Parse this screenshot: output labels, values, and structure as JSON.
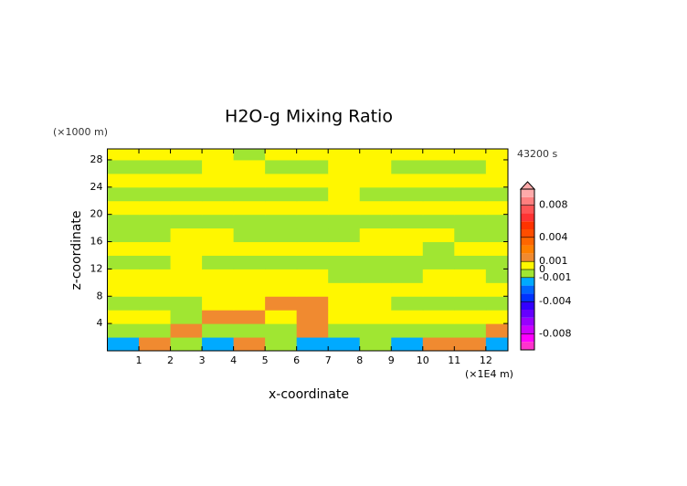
{
  "chart_data": {
    "type": "contour",
    "title": "H2O-g Mixing Ratio",
    "time_label": "43200 s",
    "x_label": "x-coordinate",
    "y_label": "z-coordinate",
    "x_unit": "(×1E4 m)",
    "y_unit": "(×1000 m)",
    "xlim": [
      0,
      12.7
    ],
    "ylim": [
      0,
      29.6
    ],
    "xticks": [
      1,
      2,
      3,
      4,
      5,
      6,
      7,
      8,
      9,
      10,
      11,
      12
    ],
    "yticks": [
      4,
      8,
      12,
      16,
      20,
      24,
      28
    ],
    "x": [
      0.5,
      1.5,
      2.5,
      3.5,
      4.5,
      5.5,
      6.5,
      7.5,
      8.5,
      9.5,
      10.5,
      11.5,
      12.5
    ],
    "y": [
      1,
      3,
      5,
      7,
      9,
      11,
      13,
      15,
      17,
      19,
      21,
      23,
      25,
      27,
      29
    ],
    "z": [
      [
        -0.0015,
        0.0015,
        -0.0005,
        -0.0015,
        0.0015,
        -0.0005,
        -0.0015,
        -0.0015,
        -0.0005,
        -0.0015,
        0.0015,
        0.0015,
        -0.0015
      ],
      [
        -0.0005,
        -0.0005,
        0.0015,
        -0.0005,
        -0.0005,
        -0.0005,
        0.0015,
        -0.0005,
        -0.0005,
        -0.0005,
        -0.0005,
        -0.0005,
        0.0015
      ],
      [
        0.0005,
        0.0005,
        -0.0005,
        0.0015,
        0.0015,
        0.0005,
        0.0015,
        0.0005,
        0.0005,
        0.0005,
        0.0005,
        0.0005,
        0.0005
      ],
      [
        -0.0005,
        -0.0005,
        -0.0005,
        0.0005,
        0.0005,
        0.0015,
        0.0015,
        0.0005,
        0.0005,
        -0.0005,
        -0.0005,
        -0.0005,
        -0.0005
      ],
      [
        0.0005,
        0.0005,
        0.0005,
        0.0005,
        0.0005,
        0.0005,
        0.0005,
        0.0005,
        0.0005,
        0.0005,
        0.0005,
        0.0005,
        0.0005
      ],
      [
        0.0005,
        0.0005,
        0.0005,
        0.0005,
        0.0005,
        0.0005,
        0.0005,
        -0.0005,
        -0.0005,
        -0.0005,
        0.0005,
        0.0005,
        -0.0005
      ],
      [
        -0.0005,
        -0.0005,
        0.0005,
        -0.0005,
        -0.0005,
        -0.0005,
        -0.0005,
        -0.0005,
        -0.0005,
        -0.0005,
        -0.0005,
        -0.0005,
        -0.0005
      ],
      [
        0.0005,
        0.0005,
        0.0005,
        0.0005,
        0.0005,
        0.0005,
        0.0005,
        0.0005,
        0.0005,
        0.0005,
        -0.0005,
        0.0005,
        0.0005
      ],
      [
        -0.0005,
        -0.0005,
        0.0005,
        0.0005,
        -0.0005,
        -0.0005,
        -0.0005,
        -0.0005,
        0.0005,
        0.0005,
        0.0005,
        -0.0005,
        -0.0005
      ],
      [
        -0.0005,
        -0.0005,
        -0.0005,
        -0.0005,
        -0.0005,
        -0.0005,
        -0.0005,
        -0.0005,
        -0.0005,
        -0.0005,
        -0.0005,
        -0.0005,
        -0.0005
      ],
      [
        0.0005,
        0.0005,
        0.0005,
        0.0005,
        0.0005,
        0.0005,
        0.0005,
        0.0005,
        0.0005,
        0.0005,
        0.0005,
        0.0005,
        0.0005
      ],
      [
        -0.0005,
        -0.0005,
        -0.0005,
        -0.0005,
        -0.0005,
        -0.0005,
        -0.0005,
        0.0005,
        -0.0005,
        -0.0005,
        -0.0005,
        -0.0005,
        -0.0005
      ],
      [
        0.0005,
        0.0005,
        0.0005,
        0.0005,
        0.0005,
        0.0005,
        0.0005,
        0.0005,
        0.0005,
        0.0005,
        0.0005,
        0.0005,
        0.0005
      ],
      [
        -0.0005,
        -0.0005,
        -0.0005,
        0.0005,
        0.0005,
        -0.0005,
        -0.0005,
        0.0005,
        0.0005,
        -0.0005,
        -0.0005,
        -0.0005,
        0.0005
      ],
      [
        0.0005,
        0.0005,
        0.0005,
        0.0005,
        -0.0005,
        0.0005,
        0.0005,
        0.0005,
        0.0005,
        0.0005,
        0.0005,
        0.0005,
        0.0005
      ]
    ],
    "clim": [
      -0.01,
      0.01
    ],
    "cticks": [
      0.008,
      0.004,
      0.001,
      0,
      -0.001,
      -0.004,
      -0.008
    ],
    "colors": [
      "#ff33cc",
      "#ff00ff",
      "#cc00ff",
      "#9900ff",
      "#6600ff",
      "#3300ff",
      "#0033ff",
      "#0066ff",
      "#00aaff",
      "#a0e632",
      "#fff700",
      "#f08a30",
      "#ff8000",
      "#ff6600",
      "#ff4d00",
      "#ff3300",
      "#ff3333",
      "#ff5555",
      "#ff7f7f",
      "#ffaaaa"
    ]
  }
}
